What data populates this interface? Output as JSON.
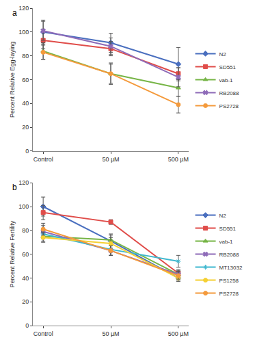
{
  "chart_data": [
    {
      "type": "line",
      "title": "a",
      "ylabel": "Percent Relative Egg-laying",
      "categories": [
        "Control",
        "50 µM",
        "500 µM"
      ],
      "ylim": [
        0,
        120
      ],
      "yticks": [
        0,
        20,
        40,
        60,
        80,
        100,
        120
      ],
      "grid": false,
      "legend": "right",
      "series": [
        {
          "name": "N2",
          "color": "#4a6fbf",
          "marker": "diamond",
          "values": [
            100,
            91,
            73
          ],
          "errors": [
            10,
            8,
            14
          ]
        },
        {
          "name": "SD551",
          "color": "#e04d4a",
          "marker": "square",
          "values": [
            93,
            86,
            65
          ],
          "errors": [
            7,
            6,
            5
          ]
        },
        {
          "name": "vab-1",
          "color": "#77b547",
          "marker": "triangle-up",
          "values": [
            84,
            65,
            53
          ],
          "errors": [
            7,
            9,
            7
          ]
        },
        {
          "name": "RB2088",
          "color": "#8e6bb8",
          "marker": "x",
          "values": [
            101,
            88,
            62
          ],
          "errors": [
            8,
            7,
            8
          ]
        },
        {
          "name": "PS2728",
          "color": "#f49a3c",
          "marker": "circle",
          "values": [
            83,
            65,
            39
          ],
          "errors": [
            6,
            8,
            7
          ]
        }
      ]
    },
    {
      "type": "line",
      "title": "b",
      "ylabel": "Percent Relative Fertility",
      "categories": [
        "Control",
        "50 µM",
        "500 µM"
      ],
      "ylim": [
        0,
        120
      ],
      "yticks": [
        0,
        20,
        40,
        60,
        80,
        100,
        120
      ],
      "grid": false,
      "legend": "right",
      "series": [
        {
          "name": "N2",
          "color": "#4a6fbf",
          "marker": "diamond",
          "values": [
            100,
            71,
            40
          ],
          "errors": [
            8,
            6,
            3
          ]
        },
        {
          "name": "SD551",
          "color": "#e04d4a",
          "marker": "square",
          "values": [
            95,
            87,
            44
          ],
          "errors": [
            6,
            2,
            3
          ]
        },
        {
          "name": "vab-1",
          "color": "#77b547",
          "marker": "triangle-up",
          "values": [
            75,
            72,
            43
          ],
          "errors": [
            4,
            4,
            3
          ]
        },
        {
          "name": "RB2088",
          "color": "#8e6bb8",
          "marker": "x",
          "values": [
            79,
            63,
            43
          ],
          "errors": [
            5,
            4,
            3
          ]
        },
        {
          "name": "MT13032",
          "color": "#3fb8cf",
          "marker": "asterisk-open",
          "values": [
            77,
            64,
            54
          ],
          "errors": [
            4,
            5,
            5
          ]
        },
        {
          "name": "PS1258",
          "color": "#f5d033",
          "marker": "circle",
          "values": [
            74,
            69,
            40
          ],
          "errors": [
            4,
            5,
            2
          ]
        },
        {
          "name": "PS2728",
          "color": "#f49a3c",
          "marker": "circle",
          "values": [
            81,
            63,
            42
          ],
          "errors": [
            5,
            4,
            3
          ]
        }
      ]
    }
  ]
}
